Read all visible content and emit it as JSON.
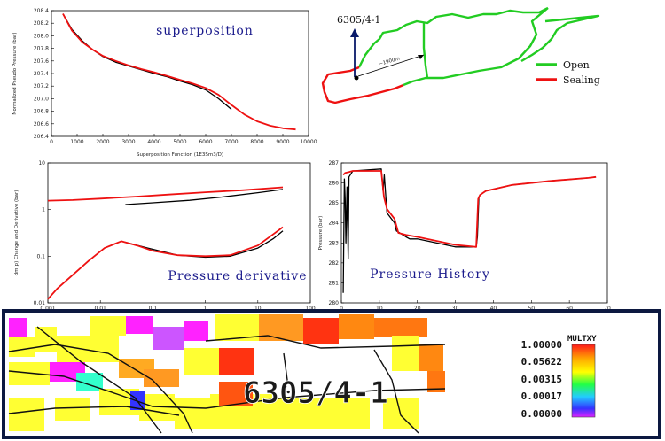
{
  "map": {
    "well_label": "6305/4-1",
    "distance_label": "~1900m",
    "legend": [
      {
        "label": "Open",
        "color": "#22cc22"
      },
      {
        "label": "Sealing",
        "color": "#ee1111"
      }
    ]
  },
  "colorbar": {
    "title": "MULTXY",
    "values": [
      "1.00000",
      "0.05622",
      "0.00315",
      "0.00017",
      "0.00000"
    ]
  },
  "grid_label": "6305/4-1",
  "colors": {
    "measured": "#000000",
    "simulated": "#ee1111",
    "frame": "#000000"
  },
  "chart_data": [
    {
      "type": "line",
      "title": "superposition",
      "xlabel": "Superposition Function (1E3Sm3/D)",
      "ylabel": "Normalized Pseudo Pressure (bar)",
      "xlim": [
        0,
        10000
      ],
      "ylim": [
        206.4,
        208.4
      ],
      "xticks": [
        "0",
        "1000",
        "2000",
        "3000",
        "4000",
        "5000",
        "6000",
        "7000",
        "8000",
        "9000",
        "10000"
      ],
      "yticks": [
        "206.4",
        "206.6",
        "206.8",
        "207.0",
        "207.2",
        "207.4",
        "207.6",
        "207.8",
        "208.0",
        "208.2",
        "208.4"
      ],
      "series": [
        {
          "color": "#000000",
          "x": [
            450,
            800,
            1200,
            1600,
            2000,
            2500,
            3000,
            3500,
            4000,
            4500,
            5000,
            5500,
            6000,
            6500,
            7000
          ],
          "y": [
            208.35,
            208.1,
            207.92,
            207.78,
            207.67,
            207.58,
            207.52,
            207.46,
            207.4,
            207.35,
            207.28,
            207.22,
            207.14,
            207.0,
            206.83
          ]
        },
        {
          "color": "#ee1111",
          "x": [
            450,
            800,
            1200,
            1600,
            2000,
            2500,
            3000,
            3500,
            4000,
            4500,
            5000,
            5500,
            6000,
            6500,
            7000,
            7500,
            8000,
            8500,
            9000,
            9500
          ],
          "y": [
            208.35,
            208.08,
            207.9,
            207.78,
            207.68,
            207.6,
            207.53,
            207.47,
            207.42,
            207.36,
            207.3,
            207.24,
            207.17,
            207.06,
            206.9,
            206.75,
            206.64,
            206.57,
            206.53,
            206.51
          ]
        }
      ]
    },
    {
      "type": "line",
      "title": "Pressure derivative",
      "ylabel": "dm(p) Change and Derivative (bar)",
      "xscale": "log",
      "yscale": "log",
      "xlim": [
        0.001,
        100
      ],
      "ylim": [
        0.01,
        10
      ],
      "xticks": [
        "0.001",
        "0.01",
        "0.1",
        "1",
        "10",
        "100"
      ],
      "yticks": [
        "0.01",
        "0.1",
        "1",
        "10"
      ],
      "series": [
        {
          "color": "#000000",
          "x": [
            0.03,
            0.1,
            0.5,
            2,
            10,
            30
          ],
          "y": [
            1.28,
            1.4,
            1.58,
            1.85,
            2.3,
            2.7
          ]
        },
        {
          "color": "#ee1111",
          "x": [
            0.001,
            0.003,
            0.01,
            0.05,
            0.2,
            1,
            5,
            30
          ],
          "y": [
            1.55,
            1.6,
            1.72,
            1.9,
            2.1,
            2.35,
            2.6,
            3.0
          ]
        },
        {
          "color": "#000000",
          "x": [
            0.03,
            0.08,
            0.3,
            1,
            3,
            10,
            20,
            30
          ],
          "y": [
            0.2,
            0.15,
            0.105,
            0.095,
            0.1,
            0.15,
            0.24,
            0.35
          ]
        },
        {
          "color": "#ee1111",
          "x": [
            0.001,
            0.0015,
            0.003,
            0.006,
            0.012,
            0.025,
            0.05,
            0.1,
            0.3,
            1,
            3,
            10,
            20,
            30
          ],
          "y": [
            0.012,
            0.02,
            0.04,
            0.08,
            0.15,
            0.21,
            0.17,
            0.13,
            0.105,
            0.1,
            0.105,
            0.17,
            0.3,
            0.42
          ]
        }
      ]
    },
    {
      "type": "line",
      "title": "Pressure History",
      "ylabel": "Pressure (bar)",
      "xlim": [
        0,
        70
      ],
      "ylim": [
        280,
        287
      ],
      "xticks": [
        "0",
        "10",
        "20",
        "30",
        "40",
        "50",
        "60",
        "70"
      ],
      "yticks": [
        "280",
        "281",
        "282",
        "283",
        "284",
        "285",
        "286",
        "287"
      ],
      "series": [
        {
          "color": "#000000",
          "x": [
            0.5,
            0.8,
            1.0,
            1.2,
            1.5,
            1.8,
            2,
            3,
            10.5,
            11,
            11.3,
            12,
            14,
            14.5,
            17,
            18,
            20,
            25,
            30,
            35.5,
            35.8,
            36.2,
            36.5,
            38,
            45,
            55,
            65,
            67
          ],
          "y": [
            280.5,
            286.2,
            285.2,
            283.0,
            285.8,
            282.2,
            286.3,
            286.6,
            286.7,
            285.6,
            286.4,
            284.5,
            284.0,
            283.6,
            283.3,
            283.2,
            283.2,
            283.0,
            282.8,
            282.8,
            283.3,
            285.3,
            285.4,
            285.6,
            285.9,
            286.1,
            286.25,
            286.3
          ]
        },
        {
          "color": "#ee1111",
          "x": [
            0.5,
            1,
            2,
            3,
            10.5,
            11.2,
            12,
            14,
            15,
            17,
            20,
            25,
            30,
            35.5,
            36,
            36.5,
            38,
            45,
            55,
            65,
            67
          ],
          "y": [
            286.4,
            286.5,
            286.55,
            286.6,
            286.6,
            285.3,
            284.7,
            284.2,
            283.5,
            283.4,
            283.3,
            283.1,
            282.9,
            282.8,
            285.2,
            285.4,
            285.6,
            285.9,
            286.1,
            286.25,
            286.3
          ]
        }
      ]
    }
  ]
}
